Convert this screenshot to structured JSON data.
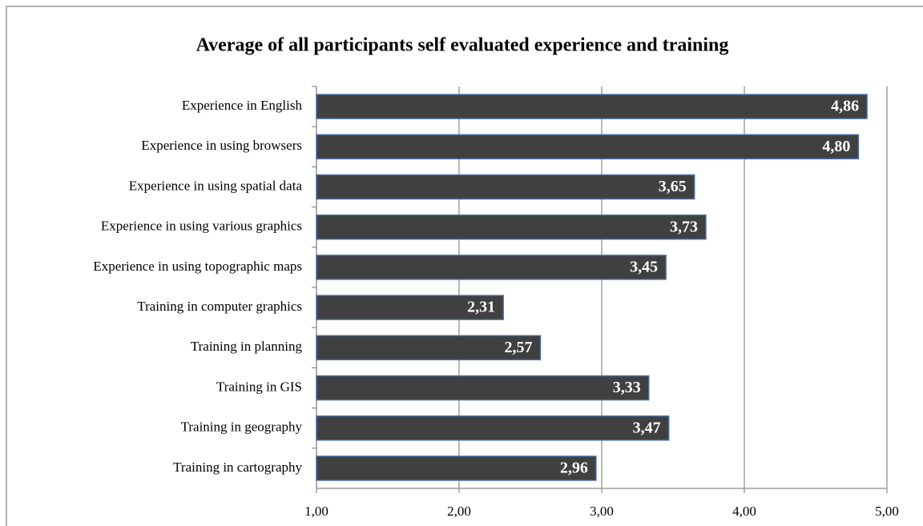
{
  "chart_data": {
    "type": "bar",
    "orientation": "horizontal",
    "title": "Average of all participants self evaluated experience and training",
    "categories": [
      "Experience in English",
      "Experience in using browsers",
      "Experience in using spatial data",
      "Experience in using various graphics",
      "Experience in using topographic maps",
      "Training in computer graphics",
      "Training in planning",
      "Training in GIS",
      "Training in geography",
      "Training in cartography"
    ],
    "values": [
      4.86,
      4.8,
      3.65,
      3.73,
      3.45,
      2.31,
      2.57,
      3.33,
      3.47,
      2.96
    ],
    "value_labels": [
      "4,86",
      "4,80",
      "3,65",
      "3,73",
      "3,45",
      "2,31",
      "2,57",
      "3,33",
      "3,47",
      "2,96"
    ],
    "color": "#404040",
    "xlim": [
      1,
      5
    ],
    "xticks": [
      {
        "value": 1,
        "label": "1,00"
      },
      {
        "value": 2,
        "label": "2,00"
      },
      {
        "value": 3,
        "label": "3,00"
      },
      {
        "value": 4,
        "label": "4,00"
      },
      {
        "value": 5,
        "label": "5,00"
      }
    ],
    "grid": true
  }
}
